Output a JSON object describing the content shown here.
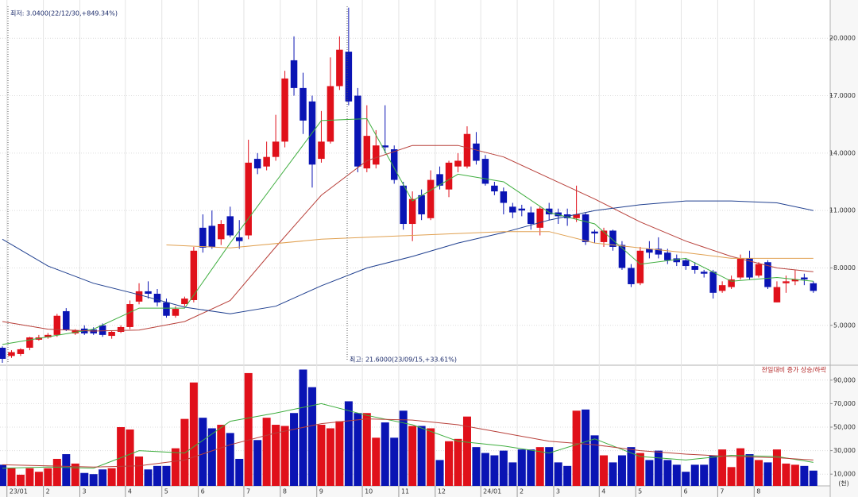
{
  "chart_data": {
    "type": "candlestick",
    "min_annotation": "최저: 3.0400(22/12/30,+849.34%)",
    "max_annotation": "최고: 21.6000(23/09/15,+33.61%)",
    "volume_legend": "전일대비 증가 상승/하락",
    "volume_unit": "(천)",
    "up_color": "#e0101a",
    "down_color": "#0a14b4",
    "categories": [
      null,
      "23/01",
      null,
      null,
      null,
      "2",
      null,
      null,
      null,
      "3",
      null,
      null,
      null,
      null,
      "4",
      null,
      null,
      null,
      "5",
      null,
      null,
      null,
      "6",
      null,
      null,
      null,
      null,
      "7",
      null,
      null,
      null,
      "8",
      null,
      null,
      null,
      "9",
      null,
      null,
      null,
      null,
      "10",
      null,
      null,
      null,
      "11",
      null,
      null,
      null,
      "12",
      null,
      null,
      null,
      null,
      "24/01",
      null,
      null,
      null,
      "2",
      null,
      null,
      null,
      "3",
      null,
      null,
      null,
      null,
      "4",
      null,
      null,
      null,
      "5",
      null,
      null,
      null,
      null,
      "6",
      null,
      null,
      null,
      "7",
      null,
      null,
      null,
      "8",
      null,
      null,
      null,
      null,
      null,
      null
    ],
    "open": [
      3.83,
      3.4,
      3.5,
      3.83,
      4.25,
      4.37,
      4.5,
      5.74,
      4.58,
      4.83,
      4.78,
      5.0,
      4.45,
      4.66,
      4.91,
      6.24,
      6.78,
      6.65,
      6.2,
      5.5,
      6.11,
      6.32,
      10.1,
      10.2,
      9.5,
      10.7,
      9.6,
      9.7,
      13.7,
      13.3,
      13.8,
      14.6,
      18.85,
      17.4,
      16.7,
      13.7,
      14.6,
      17.5,
      19.3,
      17.0,
      13.2,
      13.4,
      14.4,
      14.2,
      12.3,
      10.3,
      11.8,
      10.6,
      12.9,
      12.1,
      13.3,
      13.3,
      14.5,
      13.7,
      12.3,
      12.0,
      11.2,
      11.1,
      10.9,
      10.1,
      11.1,
      10.9,
      10.8,
      10.6,
      10.8,
      9.9,
      9.35,
      9.95,
      9.2,
      8.0,
      7.2,
      9.0,
      9.0,
      8.8,
      8.5,
      8.4,
      8.1,
      7.8,
      7.8,
      6.8,
      7.0,
      7.5,
      8.5,
      7.6,
      8.3,
      6.2,
      7.2,
      7.3,
      7.5,
      7.2
    ],
    "high": [
      3.9,
      3.7,
      3.8,
      4.4,
      4.5,
      4.6,
      5.6,
      5.9,
      4.8,
      5.0,
      4.9,
      5.1,
      4.7,
      5.0,
      6.3,
      7.2,
      7.3,
      6.9,
      6.4,
      6.0,
      6.5,
      9.1,
      10.8,
      11.0,
      10.5,
      11.2,
      10.5,
      14.7,
      14.0,
      14.6,
      16.0,
      18.3,
      20.1,
      18.2,
      17.0,
      16.2,
      19.0,
      20.1,
      21.6,
      17.4,
      16.5,
      15.2,
      16.5,
      14.4,
      12.5,
      12.0,
      12.1,
      13.1,
      13.3,
      13.6,
      14.0,
      15.4,
      15.1,
      13.9,
      12.5,
      12.2,
      11.4,
      11.3,
      11.2,
      11.2,
      11.4,
      11.1,
      11.1,
      12.3,
      10.9,
      10.0,
      10.1,
      10.0,
      9.4,
      8.2,
      9.1,
      9.4,
      9.6,
      9.0,
      8.7,
      8.5,
      8.3,
      7.9,
      7.9,
      7.3,
      7.6,
      8.7,
      8.9,
      8.3,
      8.4,
      7.3,
      7.6,
      7.9,
      7.7,
      7.3
    ],
    "low": [
      3.04,
      3.3,
      3.4,
      3.7,
      4.2,
      4.3,
      4.4,
      4.7,
      4.5,
      4.5,
      4.5,
      4.4,
      4.3,
      4.6,
      4.8,
      6.1,
      6.4,
      6.0,
      5.4,
      5.4,
      6.0,
      6.2,
      8.8,
      9.0,
      9.2,
      9.6,
      9.0,
      9.5,
      12.9,
      13.1,
      13.6,
      14.3,
      17.0,
      15.0,
      12.2,
      13.5,
      14.5,
      17.3,
      16.5,
      13.0,
      13.0,
      13.2,
      14.0,
      12.4,
      10.0,
      9.4,
      10.5,
      10.5,
      12.1,
      11.7,
      13.0,
      13.2,
      13.4,
      12.3,
      11.8,
      10.8,
      10.6,
      10.7,
      10.0,
      9.7,
      10.5,
      10.3,
      10.2,
      10.4,
      9.2,
      9.3,
      9.1,
      8.9,
      7.9,
      7.0,
      7.1,
      8.5,
      8.5,
      8.2,
      8.1,
      7.9,
      7.7,
      7.5,
      6.4,
      6.7,
      6.9,
      7.4,
      7.4,
      7.5,
      6.9,
      6.2,
      6.7,
      7.1,
      7.1,
      6.7
    ],
    "close": [
      3.25,
      3.6,
      3.75,
      4.37,
      4.37,
      4.5,
      5.5,
      4.78,
      4.74,
      4.58,
      4.58,
      4.5,
      4.66,
      4.91,
      6.11,
      6.78,
      6.65,
      6.2,
      5.5,
      5.86,
      6.4,
      8.9,
      9.06,
      9.1,
      10.3,
      9.7,
      9.4,
      13.5,
      13.2,
      13.8,
      14.6,
      17.9,
      17.4,
      15.7,
      13.4,
      14.6,
      17.5,
      19.4,
      16.7,
      13.3,
      14.9,
      14.4,
      14.3,
      12.6,
      10.3,
      11.6,
      10.8,
      12.6,
      12.3,
      13.5,
      13.6,
      15.0,
      13.6,
      12.4,
      12.0,
      11.4,
      10.9,
      11.0,
      10.3,
      11.1,
      10.8,
      10.7,
      10.6,
      10.8,
      9.35,
      9.8,
      9.95,
      9.1,
      8.0,
      7.15,
      8.9,
      8.8,
      8.7,
      8.4,
      8.3,
      8.1,
      7.9,
      7.7,
      6.7,
      7.1,
      7.4,
      8.5,
      7.5,
      8.2,
      7.0,
      7.0,
      7.3,
      7.4,
      7.4,
      6.8
    ],
    "volume": [
      18000,
      15000,
      9500,
      15000,
      12000,
      15000,
      23000,
      27000,
      19000,
      11000,
      10000,
      14000,
      15000,
      50000,
      48000,
      25000,
      14000,
      17000,
      17000,
      32000,
      57000,
      88000,
      58000,
      49000,
      52000,
      45000,
      23000,
      96000,
      39000,
      58000,
      52000,
      51000,
      62000,
      99000,
      84000,
      52000,
      49000,
      55000,
      72000,
      62000,
      62000,
      41000,
      54000,
      41000,
      64000,
      51000,
      51000,
      49000,
      22000,
      38000,
      40000,
      59000,
      33000,
      28000,
      26000,
      30000,
      20000,
      31000,
      31000,
      33000,
      33000,
      20000,
      17000,
      64000,
      65000,
      43000,
      26000,
      20000,
      26000,
      33000,
      28000,
      22000,
      30000,
      22000,
      18000,
      12000,
      18000,
      18000,
      26000,
      31000,
      16000,
      32000,
      27000,
      22000,
      20000,
      31000,
      19000,
      18000,
      17000,
      13000
    ],
    "price_lines": [
      {
        "color": "#3fae3f",
        "x": [
          0,
          5,
          10,
          15,
          20,
          25,
          30,
          35,
          40,
          45,
          50,
          55,
          60,
          65,
          70,
          75,
          80,
          85,
          89
        ],
        "values": [
          4.0,
          4.4,
          4.8,
          5.9,
          5.9,
          9.3,
          12.5,
          15.7,
          15.8,
          11.5,
          12.9,
          12.5,
          10.9,
          10.3,
          8.2,
          8.5,
          7.3,
          7.5,
          7.3
        ]
      },
      {
        "color": "#b8403a",
        "x": [
          0,
          5,
          10,
          15,
          20,
          25,
          30,
          35,
          40,
          45,
          50,
          55,
          60,
          65,
          70,
          75,
          80,
          85,
          89
        ],
        "values": [
          5.2,
          4.8,
          4.7,
          4.75,
          5.2,
          6.3,
          9.1,
          11.8,
          13.6,
          14.4,
          14.4,
          13.8,
          12.7,
          11.6,
          10.4,
          9.4,
          8.6,
          8.0,
          7.8
        ]
      },
      {
        "color": "#1f3f8f",
        "x": [
          0,
          5,
          10,
          15,
          20,
          25,
          30,
          35,
          40,
          45,
          50,
          55,
          60,
          65,
          70,
          75,
          80,
          85,
          89
        ],
        "values": [
          9.5,
          8.1,
          7.2,
          6.6,
          5.95,
          5.6,
          6.0,
          7.07,
          8.0,
          8.6,
          9.3,
          9.85,
          10.5,
          11.0,
          11.3,
          11.5,
          11.5,
          11.4,
          11.0
        ]
      },
      {
        "color": "#e0a050",
        "x": [
          18,
          25,
          35,
          45,
          55,
          60,
          65,
          70,
          75,
          80,
          89
        ],
        "values": [
          9.2,
          9.05,
          9.5,
          9.7,
          9.9,
          9.9,
          9.3,
          9.05,
          8.8,
          8.5,
          8.5
        ]
      }
    ],
    "volume_lines": [
      {
        "color": "#3fae3f",
        "x": [
          0,
          5,
          10,
          15,
          20,
          25,
          30,
          35,
          40,
          45,
          50,
          55,
          60,
          65,
          70,
          75,
          80,
          85,
          89
        ],
        "values": [
          15000,
          16000,
          15000,
          30000,
          28000,
          55000,
          62000,
          70000,
          60000,
          52000,
          38000,
          34000,
          28000,
          40000,
          25000,
          22000,
          26000,
          25000,
          20000
        ]
      },
      {
        "color": "#b8403a",
        "x": [
          0,
          5,
          10,
          15,
          20,
          25,
          30,
          35,
          40,
          45,
          50,
          55,
          60,
          65,
          70,
          75,
          80,
          85,
          89
        ],
        "values": [
          18000,
          17000,
          16000,
          17000,
          22000,
          35000,
          45000,
          53000,
          57000,
          56000,
          52000,
          45000,
          38000,
          35000,
          30000,
          27000,
          25000,
          24000,
          22000
        ]
      }
    ],
    "ylim": [
      3,
      22
    ],
    "yticks": [
      {
        "value": 5,
        "label": "5.0000"
      },
      {
        "value": 8,
        "label": "8.0000"
      },
      {
        "value": 11,
        "label": "11.0000"
      },
      {
        "value": 14,
        "label": "14.0000"
      },
      {
        "value": 17,
        "label": "17.0000"
      },
      {
        "value": 20,
        "label": "20.0000"
      }
    ],
    "y2lim": [
      0,
      100000
    ],
    "y2ticks": [
      {
        "value": 10000,
        "label": "10,000"
      },
      {
        "value": 30000,
        "label": "30,000"
      },
      {
        "value": 50000,
        "label": "50,000"
      },
      {
        "value": 70000,
        "label": "70,000"
      },
      {
        "value": 90000,
        "label": "90,000"
      }
    ],
    "grid": true
  }
}
